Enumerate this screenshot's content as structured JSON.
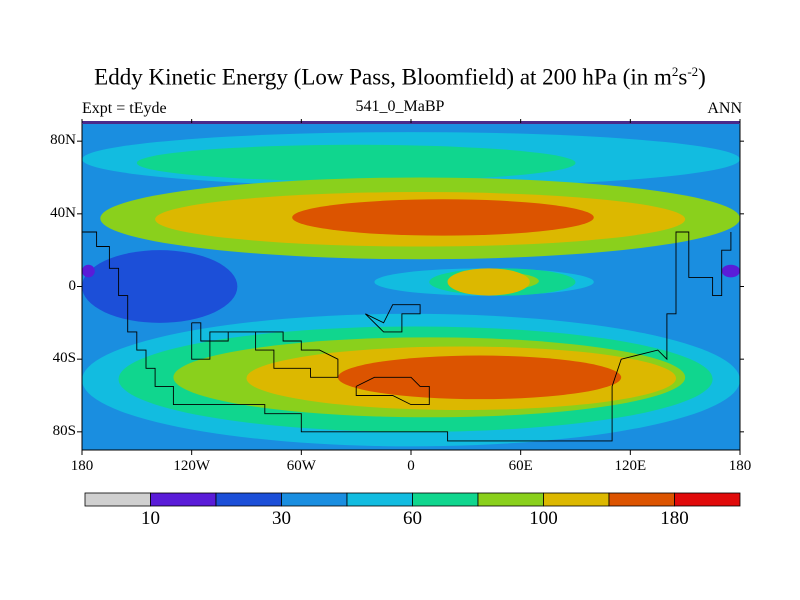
{
  "title_main": "Eddy Kinetic Energy (Low Pass, Bloomfield) at 200 hPa (in m",
  "title_sup1": "2",
  "title_mid": "s",
  "title_sup2": "-2",
  "title_end": ")",
  "left_label": "Expt = tEyde",
  "center_label": "541_0_MaBP",
  "right_label": "ANN",
  "chart_data": {
    "type": "heatmap",
    "variable": "Eddy Kinetic Energy",
    "units": "m2 s-2",
    "level": "200 hPa",
    "xlim": [
      -180,
      180
    ],
    "ylim": [
      -90,
      90
    ],
    "x_ticks": [
      {
        "value": -180,
        "label": "180"
      },
      {
        "value": -120,
        "label": "120W"
      },
      {
        "value": -60,
        "label": "60W"
      },
      {
        "value": 0,
        "label": "0"
      },
      {
        "value": 60,
        "label": "60E"
      },
      {
        "value": 120,
        "label": "120E"
      },
      {
        "value": 180,
        "label": "180"
      }
    ],
    "y_ticks": [
      {
        "value": 80,
        "label": "80N"
      },
      {
        "value": 40,
        "label": "40N"
      },
      {
        "value": 0,
        "label": "0"
      },
      {
        "value": -40,
        "label": "40S"
      },
      {
        "value": -80,
        "label": "80S"
      }
    ],
    "colorbar": {
      "levels": [
        10,
        20,
        30,
        45,
        60,
        80,
        100,
        140,
        180
      ],
      "labels": [
        {
          "index": 1,
          "label": "10"
        },
        {
          "index": 3,
          "label": "30"
        },
        {
          "index": 5,
          "label": "60"
        },
        {
          "index": 7,
          "label": "100"
        },
        {
          "index": 9,
          "label": "180"
        }
      ],
      "colors": [
        "#d0d0d0",
        "#5a1cd8",
        "#1c4fd8",
        "#1a8ee0",
        "#12bce0",
        "#10d68e",
        "#8ad01c",
        "#dcb800",
        "#dc5400",
        "#e00a0a"
      ]
    },
    "field": {
      "background_level": 3,
      "regions": [
        {
          "level": 4,
          "lon": [
            -180,
            180
          ],
          "lat": [
            55,
            85
          ]
        },
        {
          "level": 5,
          "lon": [
            -150,
            90
          ],
          "lat": [
            58,
            78
          ]
        },
        {
          "level": 6,
          "lon": [
            -170,
            180
          ],
          "lat": [
            15,
            60
          ]
        },
        {
          "level": 7,
          "lon": [
            -140,
            150
          ],
          "lat": [
            22,
            52
          ]
        },
        {
          "level": 8,
          "lon": [
            -65,
            100
          ],
          "lat": [
            28,
            48
          ]
        },
        {
          "level": 2,
          "lon": [
            -180,
            -95
          ],
          "lat": [
            -20,
            20
          ]
        },
        {
          "level": 1,
          "lon": [
            -180,
            -173
          ],
          "lat": [
            5,
            12
          ]
        },
        {
          "level": 1,
          "lon": [
            170,
            180
          ],
          "lat": [
            5,
            12
          ]
        },
        {
          "level": 4,
          "lon": [
            -20,
            100
          ],
          "lat": [
            -5,
            10
          ]
        },
        {
          "level": 5,
          "lon": [
            10,
            90
          ],
          "lat": [
            -5,
            10
          ]
        },
        {
          "level": 6,
          "lon": [
            20,
            70
          ],
          "lat": [
            -2,
            8
          ]
        },
        {
          "level": 7,
          "lon": [
            20,
            65
          ],
          "lat": [
            -5,
            10
          ]
        },
        {
          "level": 4,
          "lon": [
            -180,
            180
          ],
          "lat": [
            -88,
            -15
          ]
        },
        {
          "level": 5,
          "lon": [
            -160,
            165
          ],
          "lat": [
            -80,
            -22
          ]
        },
        {
          "level": 6,
          "lon": [
            -130,
            150
          ],
          "lat": [
            -72,
            -28
          ]
        },
        {
          "level": 7,
          "lon": [
            -90,
            145
          ],
          "lat": [
            -68,
            -33
          ]
        },
        {
          "level": 8,
          "lon": [
            -40,
            115
          ],
          "lat": [
            -62,
            -38
          ]
        }
      ]
    }
  }
}
